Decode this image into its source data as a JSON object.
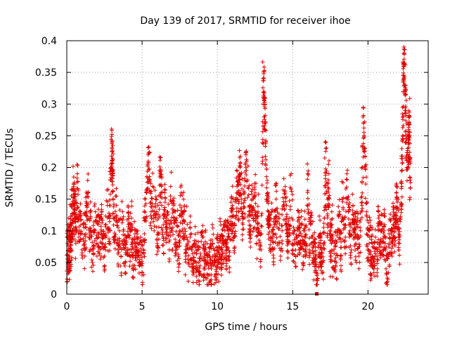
{
  "chart_data": {
    "type": "scatter",
    "title": "Day 139 of 2017, SRMTID for receiver ihoe",
    "xlabel": "GPS time / hours",
    "ylabel": "SRMTID / TECUs",
    "xlim": [
      0,
      24
    ],
    "ylim": [
      0,
      0.4
    ],
    "xticks": [
      0,
      5,
      10,
      15,
      20
    ],
    "xtick_labels": [
      "0",
      "5",
      "10",
      "15",
      "20"
    ],
    "yticks": [
      0,
      0.05,
      0.1,
      0.15,
      0.2,
      0.25,
      0.3,
      0.35,
      0.4
    ],
    "ytick_labels": [
      "0",
      "0.05",
      "0.1",
      "0.15",
      "0.2",
      "0.25",
      "0.3",
      "0.35",
      "0.4"
    ],
    "grid": true,
    "marker": "plus",
    "color": "#e00000",
    "series": [
      {
        "name": "SRMTID",
        "x": [
          0.0,
          0.05,
          0.1,
          0.15,
          0.2,
          0.25,
          0.3,
          0.35,
          0.4,
          0.45,
          0.5,
          0.55,
          0.6,
          0.7,
          0.8,
          0.9,
          1.0,
          1.1,
          1.2,
          1.3,
          1.4,
          1.5,
          1.6,
          1.7,
          1.8,
          1.9,
          2.0,
          2.1,
          2.2,
          2.3,
          2.4,
          2.5,
          2.6,
          2.7,
          2.8,
          2.9,
          3.0,
          3.0,
          3.05,
          3.1,
          3.2,
          3.3,
          3.4,
          3.5,
          3.6,
          3.7,
          3.8,
          3.9,
          4.0,
          4.1,
          4.2,
          4.3,
          4.4,
          4.5,
          4.6,
          4.7,
          4.8,
          4.9,
          5.0,
          5.1,
          5.2,
          5.3,
          5.4,
          5.5,
          5.6,
          5.7,
          5.8,
          5.9,
          6.0,
          6.1,
          6.2,
          6.3,
          6.4,
          6.5,
          6.6,
          6.7,
          6.8,
          6.9,
          7.0,
          7.1,
          7.2,
          7.3,
          7.4,
          7.5,
          7.6,
          7.7,
          7.8,
          7.9,
          8.0,
          8.1,
          8.2,
          8.3,
          8.4,
          8.5,
          8.6,
          8.7,
          8.8,
          8.9,
          9.0,
          9.1,
          9.2,
          9.3,
          9.4,
          9.5,
          9.6,
          9.7,
          9.8,
          9.9,
          10.0,
          10.1,
          10.2,
          10.3,
          10.4,
          10.5,
          10.6,
          10.7,
          10.8,
          10.9,
          11.0,
          11.1,
          11.2,
          11.3,
          11.4,
          11.5,
          11.6,
          11.7,
          11.8,
          11.9,
          12.0,
          12.1,
          12.2,
          12.3,
          12.4,
          12.5,
          12.6,
          12.7,
          12.8,
          12.9,
          13.0,
          13.05,
          13.1,
          13.15,
          13.2,
          13.3,
          13.4,
          13.5,
          13.6,
          13.7,
          13.8,
          13.9,
          14.0,
          14.1,
          14.2,
          14.3,
          14.4,
          14.5,
          14.6,
          14.7,
          14.8,
          14.9,
          15.0,
          15.1,
          15.2,
          15.3,
          15.4,
          15.5,
          15.6,
          15.7,
          15.8,
          15.9,
          16.0,
          16.1,
          16.2,
          16.3,
          16.4,
          16.5,
          16.6,
          16.7,
          16.8,
          16.9,
          17.0,
          17.1,
          17.2,
          17.3,
          17.4,
          17.5,
          17.6,
          17.7,
          17.8,
          17.9,
          18.0,
          18.1,
          18.2,
          18.3,
          18.4,
          18.5,
          18.6,
          18.7,
          18.8,
          18.9,
          19.0,
          19.1,
          19.2,
          19.3,
          19.4,
          19.5,
          19.6,
          19.7,
          19.8,
          19.9,
          20.0,
          20.1,
          20.2,
          20.3,
          20.4,
          20.5,
          20.6,
          20.7,
          20.8,
          20.9,
          21.0,
          21.1,
          21.2,
          21.3,
          21.4,
          21.5,
          21.6,
          21.7,
          21.8,
          21.9,
          22.0,
          22.1,
          22.2,
          22.25,
          22.3,
          22.35,
          22.4,
          22.45,
          22.5,
          22.55,
          22.6,
          22.65,
          22.7,
          22.75,
          22.8
        ],
        "y": [
          0.02,
          0.08,
          0.06,
          0.09,
          0.05,
          0.11,
          0.07,
          0.14,
          0.1,
          0.17,
          0.12,
          0.15,
          0.08,
          0.19,
          0.09,
          0.13,
          0.07,
          0.11,
          0.06,
          0.14,
          0.16,
          0.09,
          0.12,
          0.05,
          0.1,
          0.13,
          0.08,
          0.11,
          0.07,
          0.12,
          0.09,
          0.06,
          0.11,
          0.14,
          0.08,
          0.18,
          0.24,
          0.21,
          0.19,
          0.12,
          0.09,
          0.14,
          0.07,
          0.1,
          0.06,
          0.13,
          0.08,
          0.05,
          0.09,
          0.11,
          0.07,
          0.12,
          0.04,
          0.08,
          0.06,
          0.1,
          0.05,
          0.09,
          0.03,
          0.07,
          0.12,
          0.16,
          0.22,
          0.18,
          0.13,
          0.17,
          0.1,
          0.15,
          0.08,
          0.12,
          0.19,
          0.14,
          0.09,
          0.16,
          0.11,
          0.13,
          0.07,
          0.17,
          0.1,
          0.14,
          0.08,
          0.12,
          0.06,
          0.1,
          0.16,
          0.09,
          0.13,
          0.06,
          0.11,
          0.05,
          0.09,
          0.07,
          0.04,
          0.08,
          0.05,
          0.07,
          0.03,
          0.06,
          0.09,
          0.04,
          0.07,
          0.05,
          0.03,
          0.06,
          0.04,
          0.08,
          0.05,
          0.03,
          0.07,
          0.05,
          0.09,
          0.06,
          0.08,
          0.1,
          0.07,
          0.09,
          0.06,
          0.11,
          0.14,
          0.09,
          0.12,
          0.17,
          0.13,
          0.2,
          0.15,
          0.11,
          0.16,
          0.22,
          0.18,
          0.13,
          0.1,
          0.15,
          0.12,
          0.16,
          0.08,
          0.13,
          0.1,
          0.07,
          0.21,
          0.34,
          0.32,
          0.27,
          0.24,
          0.15,
          0.12,
          0.09,
          0.13,
          0.07,
          0.11,
          0.15,
          0.08,
          0.12,
          0.06,
          0.1,
          0.14,
          0.17,
          0.11,
          0.08,
          0.12,
          0.19,
          0.07,
          0.1,
          0.06,
          0.09,
          0.12,
          0.08,
          0.11,
          0.06,
          0.1,
          0.08,
          0.19,
          0.07,
          0.11,
          0.09,
          0.05,
          0.08,
          0.0,
          0.06,
          0.09,
          0.07,
          0.05,
          0.12,
          0.23,
          0.09,
          0.19,
          0.06,
          0.11,
          0.04,
          0.08,
          0.05,
          0.1,
          0.13,
          0.06,
          0.15,
          0.11,
          0.09,
          0.19,
          0.13,
          0.1,
          0.07,
          0.14,
          0.11,
          0.08,
          0.12,
          0.06,
          0.1,
          0.14,
          0.27,
          0.23,
          0.13,
          0.07,
          0.1,
          0.05,
          0.08,
          0.04,
          0.09,
          0.06,
          0.12,
          0.08,
          0.1,
          0.07,
          0.11,
          0.04,
          0.02,
          0.08,
          0.1,
          0.06,
          0.12,
          0.09,
          0.15,
          0.11,
          0.08,
          0.14,
          0.17,
          0.25,
          0.36,
          0.38,
          0.33,
          0.29,
          0.24,
          0.2,
          0.22,
          0.26,
          0.28,
          0.18
        ]
      }
    ],
    "scatter_cloud": {
      "count": 2800,
      "seed": 139
    }
  }
}
